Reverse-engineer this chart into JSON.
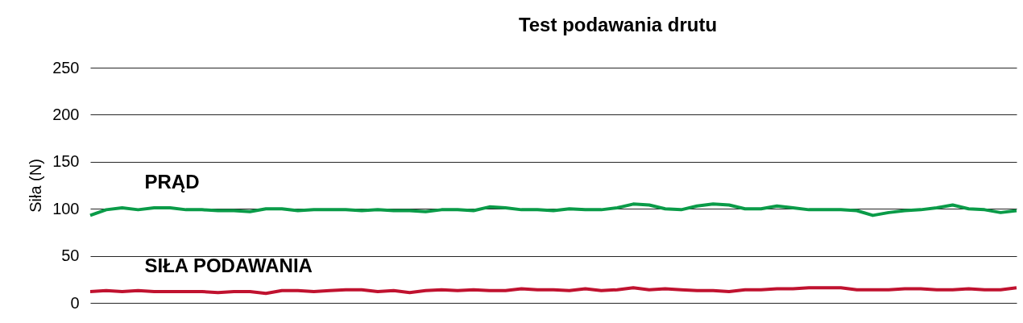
{
  "chart_data": {
    "type": "line",
    "title": "Test podawania drutu",
    "ylabel": "Siła (N)",
    "ylim": [
      0,
      250
    ],
    "yticks": [
      0,
      50,
      100,
      150,
      200,
      250
    ],
    "categories": [
      null,
      null,
      null,
      null,
      null,
      null,
      null,
      null,
      null,
      null,
      null,
      null,
      null,
      null,
      null,
      null,
      null,
      null,
      null,
      null,
      null,
      null,
      null,
      null,
      null,
      null,
      null,
      null,
      null,
      null,
      null,
      null,
      null,
      null,
      null,
      null,
      null,
      null,
      null,
      null,
      null,
      null,
      null,
      null,
      null,
      null,
      null,
      null,
      null,
      null,
      null,
      null,
      null,
      null,
      null,
      null,
      null,
      null,
      null
    ],
    "tick_labels": "y",
    "grid": "y",
    "marker": "none",
    "line_style": "solid",
    "series": [
      {
        "name": "PRĄD",
        "color": "#0a9b48",
        "values": [
          93,
          99,
          101,
          99,
          101,
          101,
          99,
          99,
          98,
          98,
          97,
          100,
          100,
          98,
          99,
          99,
          99,
          98,
          99,
          98,
          98,
          97,
          99,
          99,
          98,
          102,
          101,
          99,
          99,
          98,
          100,
          99,
          99,
          101,
          105,
          104,
          100,
          99,
          103,
          105,
          104,
          100,
          100,
          103,
          101,
          99,
          99,
          99,
          98,
          93,
          96,
          98,
          99,
          101,
          104,
          100,
          99,
          96,
          98
        ]
      },
      {
        "name": "SIŁA PODAWANIA",
        "color": "#c0122f",
        "values": [
          12,
          13,
          12,
          13,
          12,
          12,
          12,
          12,
          11,
          12,
          12,
          10,
          13,
          13,
          12,
          13,
          14,
          14,
          12,
          13,
          11,
          13,
          14,
          13,
          14,
          13,
          13,
          15,
          14,
          14,
          13,
          15,
          13,
          14,
          16,
          14,
          15,
          14,
          13,
          13,
          12,
          14,
          14,
          15,
          15,
          16,
          16,
          16,
          14,
          14,
          14,
          15,
          15,
          14,
          14,
          15,
          14,
          14,
          16
        ]
      }
    ]
  }
}
